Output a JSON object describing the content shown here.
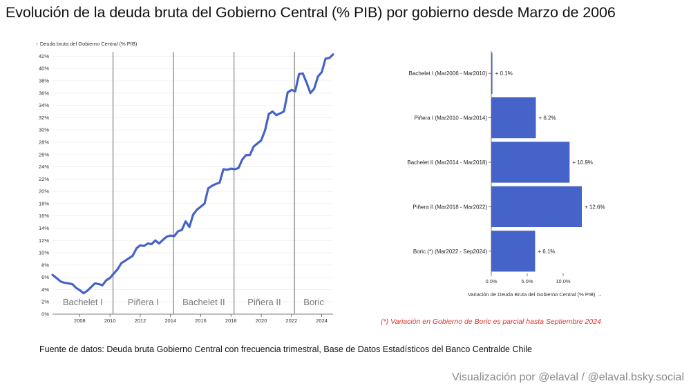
{
  "title": "Evolución de la deuda bruta del Gobierno Central (% PIB) por gobierno desde Marzo de 2006",
  "footnote": "(*) Variación en Gobierno de Boric es parcial hasta Septiembre 2024",
  "source": {
    "label": "Fuente de datos:",
    "text": "Deuda bruta Gobierno Central con frecuencia trimestral,",
    "text2": "Base de Datos Estadísticos",
    "text3": "del Banco Centralde Chile"
  },
  "credit": "Visualización por @elaval / @elaval.bsky.social",
  "chart_data": [
    {
      "type": "line",
      "ylabel": "↑ Deuda bruta del Gobierno Central (% PIB)",
      "xlabel": "",
      "ylim": [
        0,
        42.5
      ],
      "xlim": [
        2006.2,
        2024.75
      ],
      "grid": true,
      "y_ticks": [
        "0%",
        "2%",
        "4%",
        "6%",
        "8%",
        "10%",
        "12%",
        "14%",
        "16%",
        "18%",
        "20%",
        "22%",
        "24%",
        "26%",
        "28%",
        "30%",
        "32%",
        "34%",
        "36%",
        "38%",
        "40%",
        "42%"
      ],
      "x_ticks": [
        "2008",
        "2010",
        "2012",
        "2014",
        "2016",
        "2018",
        "2020",
        "2022",
        "2024"
      ],
      "period_breaks": [
        2010.2,
        2014.2,
        2018.2,
        2022.2
      ],
      "periods": [
        {
          "label": "Bachelet I",
          "start": 2006.2,
          "end": 2010.2
        },
        {
          "label": "Piñera I",
          "start": 2010.2,
          "end": 2014.2
        },
        {
          "label": "Bachelet II",
          "start": 2014.2,
          "end": 2018.2
        },
        {
          "label": "Piñera II",
          "start": 2018.2,
          "end": 2022.2
        },
        {
          "label": "Boric",
          "start": 2022.2,
          "end": 2024.75
        }
      ],
      "series": [
        {
          "x": [
            2006.2,
            2006.5,
            2006.75,
            2007.0,
            2007.25,
            2007.5,
            2007.75,
            2008.0,
            2008.25,
            2008.5,
            2008.75,
            2009.0,
            2009.25,
            2009.5,
            2009.75,
            2010.0,
            2010.25,
            2010.5,
            2010.75,
            2011.0,
            2011.25,
            2011.5,
            2011.75,
            2012.0,
            2012.25,
            2012.5,
            2012.75,
            2013.0,
            2013.25,
            2013.5,
            2013.75,
            2014.0,
            2014.25,
            2014.5,
            2014.75,
            2015.0,
            2015.25,
            2015.5,
            2015.75,
            2016.0,
            2016.25,
            2016.5,
            2016.75,
            2017.0,
            2017.25,
            2017.5,
            2017.75,
            2018.0,
            2018.25,
            2018.5,
            2018.75,
            2019.0,
            2019.25,
            2019.5,
            2019.75,
            2020.0,
            2020.25,
            2020.5,
            2020.75,
            2021.0,
            2021.25,
            2021.5,
            2021.75,
            2022.0,
            2022.25,
            2022.5,
            2022.75,
            2023.0,
            2023.25,
            2023.5,
            2023.75,
            2024.0,
            2024.25,
            2024.5,
            2024.75
          ],
          "values": [
            6.4,
            5.8,
            5.3,
            5.1,
            5.0,
            4.9,
            4.3,
            3.9,
            3.4,
            3.8,
            4.4,
            5.0,
            4.9,
            4.7,
            5.5,
            5.9,
            6.6,
            7.3,
            8.3,
            8.7,
            9.1,
            9.5,
            10.7,
            11.2,
            11.1,
            11.5,
            11.4,
            12.0,
            11.5,
            12.1,
            12.6,
            12.8,
            12.7,
            13.5,
            13.7,
            15.1,
            14.2,
            16.2,
            17.0,
            17.5,
            18.0,
            20.5,
            20.9,
            21.2,
            21.4,
            23.6,
            23.5,
            23.7,
            23.6,
            23.8,
            25.2,
            25.9,
            25.9,
            27.3,
            27.8,
            28.3,
            29.9,
            32.6,
            33.0,
            32.4,
            32.7,
            33.0,
            36.1,
            36.5,
            36.3,
            39.1,
            39.2,
            37.7,
            36.0,
            36.7,
            38.7,
            39.4,
            41.6,
            41.7,
            42.3
          ]
        }
      ]
    },
    {
      "type": "bar",
      "orientation": "horizontal",
      "xlabel": "Variación de Deuda Bruta del Gobierno Central (% PIB) →",
      "xlim": [
        0,
        12.6
      ],
      "x_ticks": [
        "0.0%",
        "5.0%",
        "10.0%"
      ],
      "categories": [
        "Bachelet I (Mar2006 - Mar2010)",
        "Piñera I (Mar2010 - Mar2014)",
        "Bachelet II (Mar2014 - Mar2018)",
        "Piñera II (Mar2018 - Mar2022)",
        "Boric (*) (Mar2022 - Sep2024)"
      ],
      "values": [
        0.1,
        6.2,
        10.9,
        12.6,
        6.1
      ],
      "value_labels": [
        "+ 0.1%",
        "+ 6.2%",
        "+ 10.9%",
        "+ 12.6%",
        "+ 6.1%"
      ]
    }
  ],
  "colors": {
    "series": "#4563c8",
    "period_line": "#8c8c8c",
    "grid": "#eeeeee",
    "footnote": "#e0322b",
    "credit": "#8a8a8a"
  }
}
